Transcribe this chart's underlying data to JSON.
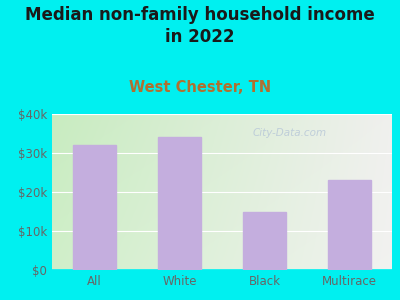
{
  "title": "Median non-family household income\nin 2022",
  "subtitle": "West Chester, TN",
  "categories": [
    "All",
    "White",
    "Black",
    "Multirace"
  ],
  "values": [
    32000,
    34000,
    15000,
    23000
  ],
  "bar_color": "#c4aede",
  "background_color": "#00f0f0",
  "plot_bg_left": "#c8ecc0",
  "plot_bg_right": "#f0f0ee",
  "title_color": "#1a1a1a",
  "subtitle_color": "#b07030",
  "tick_label_color": "#666666",
  "ytick_labels": [
    "$0",
    "$10k",
    "$20k",
    "$30k",
    "$40k"
  ],
  "ytick_values": [
    0,
    10000,
    20000,
    30000,
    40000
  ],
  "ylim": [
    0,
    40000
  ],
  "watermark": "City-Data.com",
  "title_fontsize": 12,
  "subtitle_fontsize": 10.5,
  "tick_fontsize": 8.5
}
